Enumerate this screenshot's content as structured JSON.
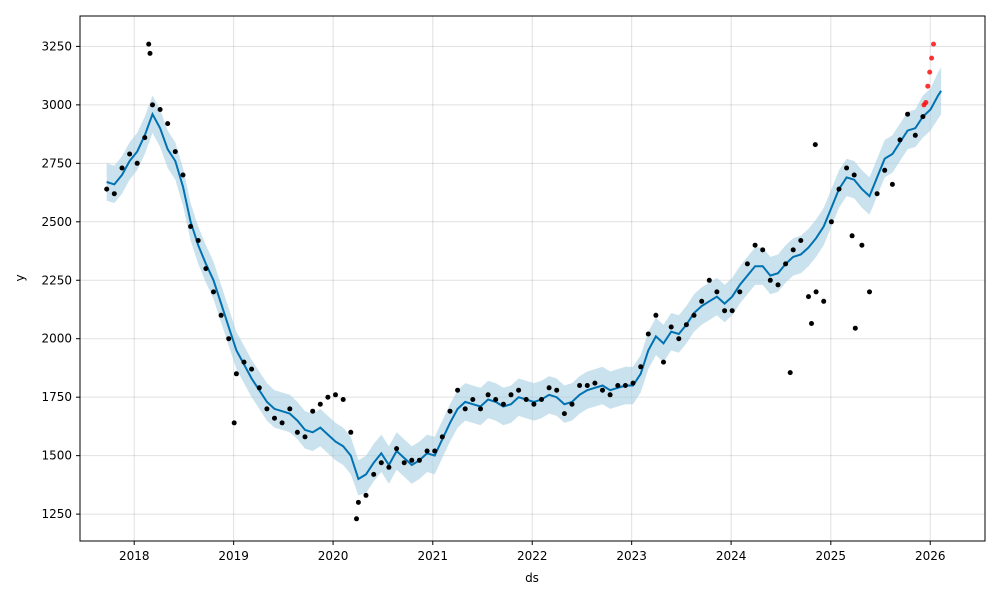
{
  "chart_data": {
    "type": "scatter",
    "xlabel": "ds",
    "ylabel": "y",
    "grid": true,
    "x_ticks": [
      "2018",
      "2019",
      "2020",
      "2021",
      "2022",
      "2023",
      "2024",
      "2025",
      "2026"
    ],
    "y_ticks": [
      "1250",
      "1500",
      "1750",
      "2000",
      "2250",
      "2500",
      "2750",
      "3000",
      "3250"
    ],
    "xlim": [
      "2017-06-16",
      "2026-07-21"
    ],
    "ylim": [
      1135,
      3380
    ],
    "colors": {
      "observed": "#000000",
      "recent_observed": "#ff0000",
      "forecast_line": "#0072b2",
      "uncertainty_band": "#a6cee3"
    },
    "series": [
      {
        "role": "forecast",
        "dates": [
          "2017-09-22",
          "2017-10-20",
          "2017-11-17",
          "2017-12-15",
          "2018-01-12",
          "2018-02-09",
          "2018-03-09",
          "2018-04-06",
          "2018-05-04",
          "2018-06-01",
          "2018-06-29",
          "2018-07-27",
          "2018-08-24",
          "2018-09-21",
          "2018-10-19",
          "2018-11-16",
          "2018-12-14",
          "2019-01-11",
          "2019-02-08",
          "2019-03-08",
          "2019-04-05",
          "2019-05-03",
          "2019-05-31",
          "2019-06-28",
          "2019-07-26",
          "2019-08-23",
          "2019-09-20",
          "2019-10-18",
          "2019-11-15",
          "2019-12-13",
          "2020-01-10",
          "2020-02-07",
          "2020-03-06",
          "2020-04-03",
          "2020-05-01",
          "2020-05-29",
          "2020-06-26",
          "2020-07-24",
          "2020-08-21",
          "2020-09-18",
          "2020-10-16",
          "2020-11-13",
          "2020-12-11",
          "2021-01-08",
          "2021-02-05",
          "2021-03-05",
          "2021-04-02",
          "2021-04-30",
          "2021-05-28",
          "2021-06-25",
          "2021-07-23",
          "2021-08-20",
          "2021-09-17",
          "2021-10-15",
          "2021-11-12",
          "2021-12-10",
          "2022-01-07",
          "2022-02-04",
          "2022-03-04",
          "2022-04-01",
          "2022-04-29",
          "2022-05-27",
          "2022-06-24",
          "2022-07-22",
          "2022-08-19",
          "2022-09-16",
          "2022-10-14",
          "2022-11-11",
          "2022-12-09",
          "2023-01-06",
          "2023-02-03",
          "2023-03-03",
          "2023-03-31",
          "2023-04-28",
          "2023-05-26",
          "2023-06-23",
          "2023-07-21",
          "2023-08-18",
          "2023-09-15",
          "2023-10-13",
          "2023-11-10",
          "2023-12-08",
          "2024-01-05",
          "2024-02-02",
          "2024-03-01",
          "2024-03-29",
          "2024-04-26",
          "2024-05-24",
          "2024-06-21",
          "2024-07-19",
          "2024-08-16",
          "2024-09-13",
          "2024-10-11",
          "2024-11-08",
          "2024-12-06",
          "2025-01-03",
          "2025-01-31",
          "2025-02-28",
          "2025-03-28",
          "2025-04-25",
          "2025-05-23",
          "2025-06-20",
          "2025-07-18",
          "2025-08-15",
          "2025-09-12",
          "2025-10-10",
          "2025-11-07",
          "2025-12-05",
          "2026-01-02",
          "2026-01-30",
          "2026-02-10"
        ],
        "yhat": [
          2670,
          2660,
          2700,
          2760,
          2800,
          2870,
          2960,
          2900,
          2810,
          2760,
          2650,
          2500,
          2400,
          2320,
          2250,
          2150,
          2050,
          1950,
          1890,
          1830,
          1780,
          1730,
          1700,
          1690,
          1680,
          1650,
          1610,
          1600,
          1620,
          1590,
          1560,
          1540,
          1500,
          1400,
          1420,
          1470,
          1510,
          1460,
          1520,
          1490,
          1460,
          1480,
          1510,
          1500,
          1570,
          1640,
          1700,
          1730,
          1720,
          1710,
          1740,
          1730,
          1710,
          1720,
          1750,
          1740,
          1730,
          1740,
          1760,
          1750,
          1720,
          1730,
          1760,
          1780,
          1790,
          1800,
          1780,
          1790,
          1800,
          1800,
          1850,
          1950,
          2010,
          1980,
          2030,
          2020,
          2060,
          2110,
          2140,
          2160,
          2180,
          2150,
          2180,
          2230,
          2270,
          2310,
          2310,
          2270,
          2280,
          2320,
          2350,
          2360,
          2390,
          2430,
          2480,
          2560,
          2640,
          2690,
          2680,
          2640,
          2610,
          2690,
          2770,
          2790,
          2840,
          2890,
          2900,
          2950,
          2980,
          3040,
          3060
        ],
        "lower": [
          2590,
          2580,
          2620,
          2680,
          2720,
          2790,
          2880,
          2820,
          2730,
          2680,
          2570,
          2420,
          2320,
          2240,
          2170,
          2070,
          1970,
          1870,
          1810,
          1750,
          1700,
          1650,
          1620,
          1610,
          1600,
          1570,
          1530,
          1520,
          1540,
          1510,
          1480,
          1460,
          1420,
          1330,
          1340,
          1390,
          1430,
          1380,
          1440,
          1410,
          1380,
          1400,
          1430,
          1420,
          1490,
          1560,
          1620,
          1650,
          1640,
          1630,
          1660,
          1650,
          1630,
          1640,
          1670,
          1660,
          1650,
          1660,
          1680,
          1670,
          1640,
          1650,
          1680,
          1700,
          1710,
          1720,
          1700,
          1710,
          1720,
          1720,
          1770,
          1870,
          1930,
          1900,
          1950,
          1940,
          1980,
          2030,
          2060,
          2080,
          2100,
          2070,
          2100,
          2150,
          2190,
          2230,
          2230,
          2190,
          2200,
          2240,
          2270,
          2280,
          2310,
          2350,
          2400,
          2480,
          2560,
          2610,
          2600,
          2560,
          2530,
          2610,
          2690,
          2710,
          2760,
          2810,
          2820,
          2860,
          2890,
          2940,
          2960
        ],
        "upper": [
          2750,
          2740,
          2780,
          2840,
          2880,
          2950,
          3040,
          2980,
          2890,
          2840,
          2730,
          2580,
          2480,
          2400,
          2330,
          2230,
          2130,
          2030,
          1970,
          1910,
          1860,
          1810,
          1780,
          1770,
          1760,
          1730,
          1690,
          1680,
          1700,
          1670,
          1640,
          1620,
          1580,
          1480,
          1500,
          1550,
          1590,
          1540,
          1600,
          1570,
          1540,
          1560,
          1590,
          1580,
          1650,
          1720,
          1780,
          1810,
          1800,
          1790,
          1820,
          1810,
          1790,
          1800,
          1830,
          1820,
          1810,
          1820,
          1840,
          1830,
          1800,
          1810,
          1840,
          1860,
          1870,
          1880,
          1860,
          1870,
          1880,
          1880,
          1930,
          2030,
          2090,
          2060,
          2110,
          2100,
          2140,
          2190,
          2220,
          2240,
          2260,
          2230,
          2260,
          2310,
          2350,
          2390,
          2390,
          2350,
          2360,
          2400,
          2430,
          2440,
          2470,
          2510,
          2560,
          2640,
          2720,
          2770,
          2760,
          2720,
          2690,
          2770,
          2850,
          2870,
          2920,
          2970,
          2980,
          3040,
          3070,
          3140,
          3160
        ]
      },
      {
        "role": "observed",
        "dates": [
          "2017-09-22",
          "2017-10-20",
          "2017-11-17",
          "2017-12-15",
          "2018-01-12",
          "2018-02-09",
          "2018-03-09",
          "2018-04-06",
          "2018-05-04",
          "2018-06-01",
          "2018-06-29",
          "2018-07-27",
          "2018-08-24",
          "2018-09-21",
          "2018-10-19",
          "2018-11-16",
          "2018-12-14",
          "2019-01-11",
          "2019-02-08",
          "2019-03-08",
          "2019-04-05",
          "2019-05-03",
          "2019-05-31",
          "2019-06-28",
          "2019-07-26",
          "2019-08-23",
          "2019-09-20",
          "2019-10-18",
          "2019-11-15",
          "2019-12-13",
          "2020-01-10",
          "2020-02-07",
          "2020-03-06",
          "2020-04-03",
          "2020-05-01",
          "2020-05-29",
          "2020-06-26",
          "2020-07-24",
          "2020-08-21",
          "2020-09-18",
          "2020-10-16",
          "2020-11-13",
          "2020-12-11",
          "2021-01-08",
          "2021-02-05",
          "2021-03-05",
          "2021-04-02",
          "2021-04-30",
          "2021-05-28",
          "2021-06-25",
          "2021-07-23",
          "2021-08-20",
          "2021-09-17",
          "2021-10-15",
          "2021-11-12",
          "2021-12-10",
          "2022-01-07",
          "2022-02-04",
          "2022-03-04",
          "2022-04-01",
          "2022-04-29",
          "2022-05-27",
          "2022-06-24",
          "2022-07-22",
          "2022-08-19",
          "2022-09-16",
          "2022-10-14",
          "2022-11-11",
          "2022-12-09",
          "2023-01-06",
          "2023-02-03",
          "2023-03-03",
          "2023-03-31",
          "2023-04-28",
          "2023-05-26",
          "2023-06-23",
          "2023-07-21",
          "2023-08-18",
          "2023-09-15",
          "2023-10-13",
          "2023-11-10",
          "2023-12-08",
          "2024-01-05",
          "2024-02-02",
          "2024-03-01",
          "2024-03-29",
          "2024-04-26",
          "2024-05-24",
          "2024-06-21",
          "2024-07-19",
          "2024-08-16",
          "2024-09-13",
          "2024-10-11",
          "2024-11-08",
          "2024-12-06",
          "2025-01-03",
          "2025-01-31",
          "2025-02-28",
          "2025-03-28",
          "2025-04-25",
          "2025-05-23",
          "2025-06-20",
          "2025-07-18",
          "2025-08-15",
          "2025-09-12",
          "2025-10-10",
          "2025-11-07",
          "2025-12-05"
        ],
        "values": [
          2640,
          2620,
          2730,
          2790,
          2750,
          2860,
          3000,
          2980,
          2920,
          2800,
          2700,
          2480,
          2420,
          2300,
          2200,
          2100,
          2000,
          1850,
          1900,
          1870,
          1790,
          1700,
          1660,
          1640,
          1700,
          1600,
          1580,
          1690,
          1720,
          1750,
          1760,
          1740,
          1600,
          1300,
          1330,
          1420,
          1470,
          1450,
          1530,
          1470,
          1480,
          1480,
          1520,
          1520,
          1580,
          1690,
          1780,
          1700,
          1740,
          1700,
          1760,
          1740,
          1720,
          1760,
          1780,
          1740,
          1720,
          1740,
          1790,
          1780,
          1680,
          1720,
          1800,
          1800,
          1810,
          1780,
          1760,
          1800,
          1800,
          1810,
          1880,
          2020,
          2100,
          1900,
          2050,
          2000,
          2060,
          2100,
          2160,
          2250,
          2200,
          2120,
          2120,
          2200,
          2320,
          2400,
          2380,
          2250,
          2230,
          2320,
          2380,
          2420,
          2180,
          2200,
          2160,
          2500,
          2640,
          2730,
          2700,
          2400,
          2200,
          2620,
          2720,
          2660,
          2850,
          2960,
          2870,
          2950
        ],
        "points": [
          [
            "2018-02-23",
            3260
          ],
          [
            "2018-02-28",
            3220
          ],
          [
            "2019-01-03",
            1640
          ],
          [
            "2020-03-27",
            1230
          ],
          [
            "2024-08-05",
            1855
          ],
          [
            "2025-04-01",
            2045
          ],
          [
            "2024-11-05",
            2830
          ],
          [
            "2025-03-20",
            2440
          ],
          [
            "2024-10-22",
            2065
          ]
        ]
      },
      {
        "role": "recent",
        "dates": [
          "2025-12-09",
          "2025-12-16",
          "2025-12-23",
          "2025-12-30",
          "2026-01-06",
          "2026-01-13"
        ],
        "values": [
          3000,
          3010,
          3080,
          3140,
          3200,
          3260
        ]
      }
    ]
  }
}
